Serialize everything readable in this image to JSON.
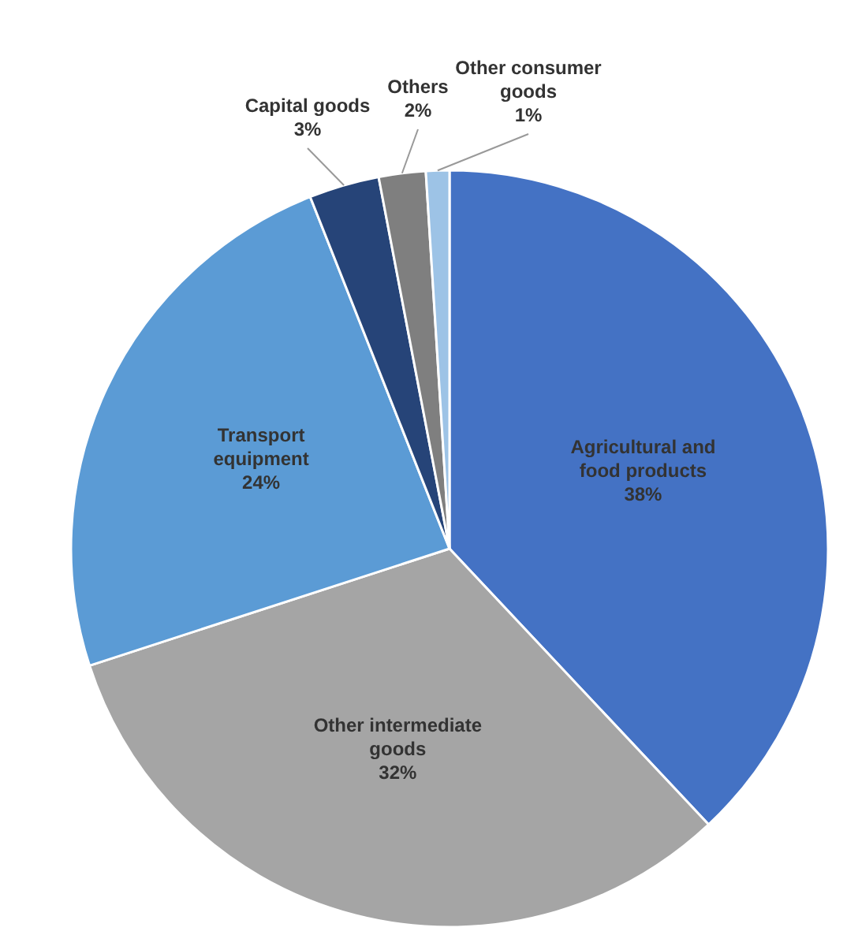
{
  "chart_data": {
    "type": "pie",
    "categories": [
      "Agricultural and food products",
      "Other intermediate goods",
      "Transport equipment",
      "Capital goods",
      "Others",
      "Other consumer goods"
    ],
    "values": [
      38,
      32,
      24,
      3,
      2,
      1
    ],
    "value_labels": [
      "38%",
      "32%",
      "24%",
      "3%",
      "2%",
      "1%"
    ],
    "colors": [
      "#4472c4",
      "#a5a5a5",
      "#5b9bd5",
      "#264478",
      "#7f7f7f",
      "#9dc3e6"
    ],
    "legend": false
  }
}
